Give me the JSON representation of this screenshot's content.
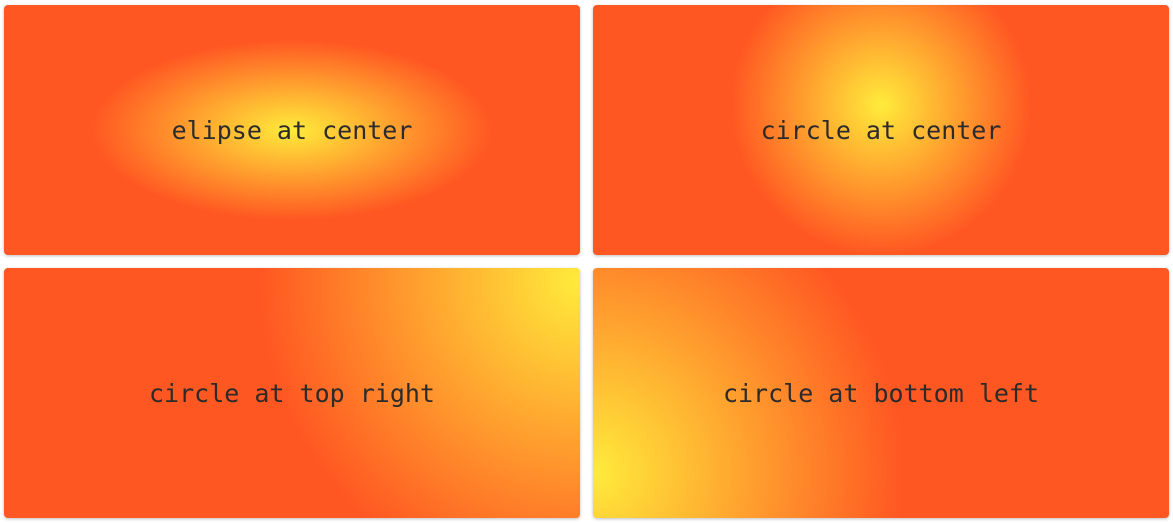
{
  "colors": {
    "inner": "#ffeb3b",
    "outer": "#ff5722",
    "text": "#2b2b2b"
  },
  "cards": [
    {
      "label": "elipse at center"
    },
    {
      "label": "circle at center"
    },
    {
      "label": "circle at top right"
    },
    {
      "label": "circle at bottom left"
    }
  ]
}
